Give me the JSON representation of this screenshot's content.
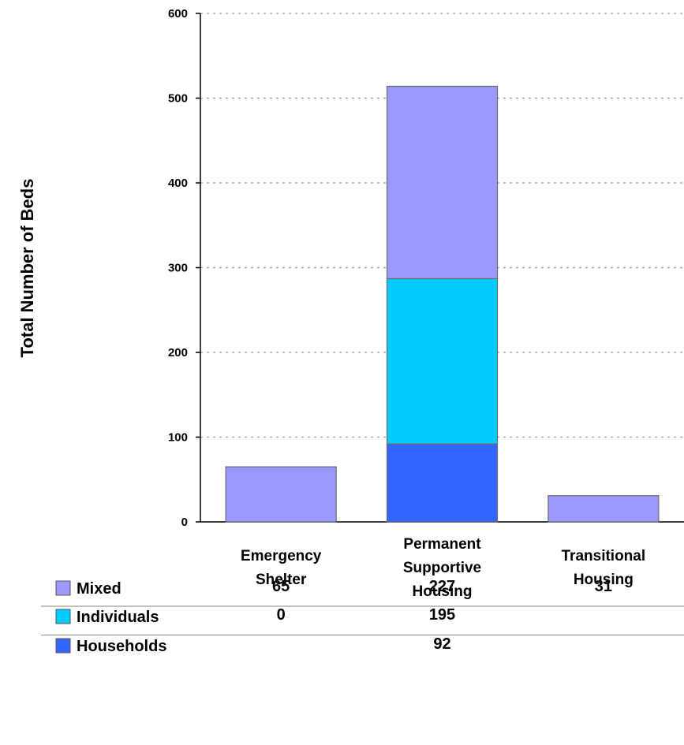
{
  "chart_data": {
    "type": "bar",
    "stacked": true,
    "categories": [
      [
        "Emergency",
        "Shelter"
      ],
      [
        "Permanent",
        "Supportive",
        "Housing"
      ],
      [
        "Transitional",
        "Housing"
      ]
    ],
    "series": [
      {
        "name": "Households",
        "color": "#3366ff",
        "values": [
          0,
          92,
          0
        ],
        "table_values": [
          "",
          "92",
          ""
        ]
      },
      {
        "name": "Individuals",
        "color": "#00ccff",
        "values": [
          0,
          195,
          0
        ],
        "table_values": [
          "0",
          "195",
          ""
        ]
      },
      {
        "name": "Mixed",
        "color": "#9999ff",
        "values": [
          65,
          227,
          31
        ],
        "table_values": [
          "65",
          "227",
          "31"
        ]
      }
    ],
    "table_order": [
      "Mixed",
      "Individuals",
      "Households"
    ],
    "ylabel": "Total Number of Beds",
    "ylim": [
      0,
      600
    ],
    "yticks": [
      0,
      100,
      200,
      300,
      400,
      500,
      600
    ],
    "grid": true,
    "legend": "data-table"
  }
}
